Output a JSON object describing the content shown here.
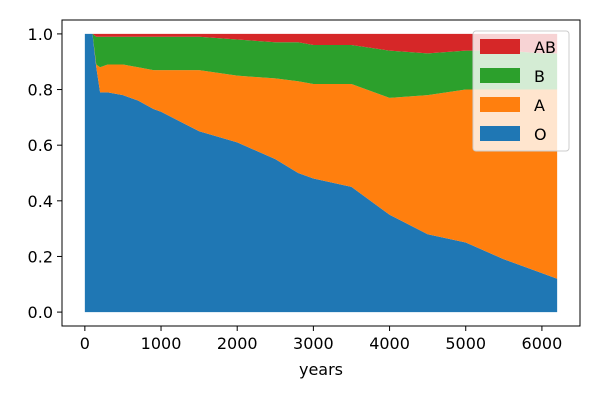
{
  "chart_data": {
    "type": "area",
    "stacked": true,
    "xlabel": "years",
    "ylabel": "",
    "title": "",
    "xlim": [
      -300,
      6500
    ],
    "ylim": [
      -0.05,
      1.05
    ],
    "xticks": [
      0,
      1000,
      2000,
      3000,
      4000,
      5000,
      6000
    ],
    "yticks": [
      0.0,
      0.2,
      0.4,
      0.6,
      0.8,
      1.0
    ],
    "ytick_labels": [
      "0.0",
      "0.2",
      "0.4",
      "0.6",
      "0.8",
      "1.0"
    ],
    "grid": false,
    "legend_position": "top-right",
    "x": [
      0,
      100,
      150,
      200,
      300,
      500,
      700,
      900,
      1000,
      1500,
      2000,
      2500,
      2800,
      3000,
      3500,
      4000,
      4500,
      5000,
      5500,
      6000,
      6200
    ],
    "series": [
      {
        "name": "O",
        "color": "#1f77b4",
        "values": [
          1.0,
          1.0,
          0.88,
          0.79,
          0.79,
          0.78,
          0.76,
          0.73,
          0.72,
          0.65,
          0.61,
          0.55,
          0.5,
          0.48,
          0.45,
          0.35,
          0.28,
          0.25,
          0.19,
          0.14,
          0.12
        ]
      },
      {
        "name": "A",
        "color": "#ff7f0e",
        "values": [
          0.0,
          0.0,
          0.01,
          0.09,
          0.1,
          0.11,
          0.12,
          0.14,
          0.15,
          0.22,
          0.24,
          0.29,
          0.33,
          0.34,
          0.37,
          0.42,
          0.5,
          0.55,
          0.61,
          0.66,
          0.68
        ]
      },
      {
        "name": "B",
        "color": "#2ca02c",
        "values": [
          0.0,
          0.0,
          0.1,
          0.11,
          0.1,
          0.1,
          0.11,
          0.12,
          0.12,
          0.12,
          0.13,
          0.13,
          0.14,
          0.14,
          0.14,
          0.17,
          0.15,
          0.14,
          0.14,
          0.13,
          0.13
        ]
      },
      {
        "name": "AB",
        "color": "#d62728",
        "values": [
          0.0,
          0.0,
          0.01,
          0.01,
          0.01,
          0.01,
          0.01,
          0.01,
          0.01,
          0.01,
          0.02,
          0.03,
          0.03,
          0.04,
          0.04,
          0.06,
          0.07,
          0.06,
          0.06,
          0.07,
          0.07
        ]
      }
    ],
    "legend_order": [
      "AB",
      "B",
      "A",
      "O"
    ]
  }
}
